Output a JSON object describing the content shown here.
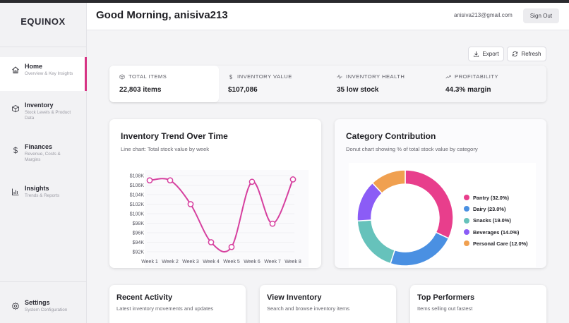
{
  "brand": "EQUINOX",
  "sidebar": {
    "items": [
      {
        "title": "Home",
        "sub": "Overview & Key Insights",
        "icon": "home-icon"
      },
      {
        "title": "Inventory",
        "sub": "Stock Levels & Product Data",
        "icon": "box-icon"
      },
      {
        "title": "Finances",
        "sub": "Revenue, Costs & Margins",
        "icon": "dollar-icon"
      },
      {
        "title": "Insights",
        "sub": "Trends & Reports",
        "icon": "bar-chart-icon"
      }
    ],
    "settings": {
      "title": "Settings",
      "sub": "System Configuration",
      "icon": "gear-icon"
    }
  },
  "header": {
    "greeting": "Good Morning, anisiva213",
    "email": "anisiva213@gmail.com",
    "signout": "Sign Out"
  },
  "actions": {
    "export": "Export",
    "refresh": "Refresh"
  },
  "stats": [
    {
      "label": "TOTAL ITEMS",
      "value": "22,803 items",
      "icon": "cube-icon"
    },
    {
      "label": "INVENTORY VALUE",
      "value": "$107,086",
      "icon": "dollar-icon"
    },
    {
      "label": "INVENTORY HEALTH",
      "value": "35 low stock",
      "icon": "pulse-icon"
    },
    {
      "label": "PROFITABILITY",
      "value": "44.3% margin",
      "icon": "trend-up-icon"
    }
  ],
  "trend": {
    "title": "Inventory Trend Over Time",
    "sub": "Line chart: Total stock value by week"
  },
  "category": {
    "title": "Category Contribution",
    "sub": "Donut chart showing % of total stock value by category"
  },
  "cards": [
    {
      "title": "Recent Activity",
      "sub": "Latest inventory movements and updates"
    },
    {
      "title": "View Inventory",
      "sub": "Search and browse inventory items"
    },
    {
      "title": "Top Performers",
      "sub": "Items selling out fastest"
    }
  ],
  "colors": {
    "accent": "#d63384",
    "line": "#d6409f"
  },
  "chart_data": [
    {
      "type": "line",
      "categories": [
        "Week 1",
        "Week 2",
        "Week 3",
        "Week 4",
        "Week 5",
        "Week 6",
        "Week 7",
        "Week 8"
      ],
      "values": [
        107000,
        107000,
        102000,
        94000,
        93000,
        106700,
        97900,
        107200
      ],
      "yticks": [
        "$92K",
        "$94K",
        "$96K",
        "$98K",
        "$100K",
        "$102K",
        "$104K",
        "$106K",
        "$108K"
      ],
      "ylim": [
        92000,
        108000
      ],
      "color": "#d6409f",
      "grid": true
    },
    {
      "type": "pie",
      "donut": true,
      "slices": [
        {
          "label": "Pantry (32.0%)",
          "value": 32.0,
          "color": "#e83e8c"
        },
        {
          "label": "Dairy (23.0%)",
          "value": 23.0,
          "color": "#4a90e2"
        },
        {
          "label": "Snacks (19.0%)",
          "value": 19.0,
          "color": "#66c2bb"
        },
        {
          "label": "Beverages (14.0%)",
          "value": 14.0,
          "color": "#8b5cf6"
        },
        {
          "label": "Personal Care (12.0%)",
          "value": 12.0,
          "color": "#f0a050"
        }
      ],
      "legend": "right"
    }
  ]
}
